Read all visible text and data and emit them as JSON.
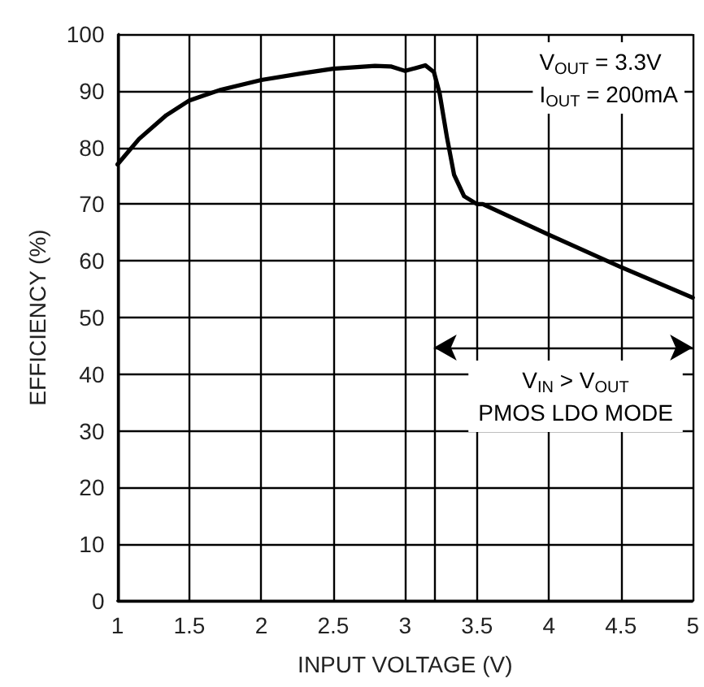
{
  "chart_data": {
    "type": "line",
    "xlabel": "INPUT VOLTAGE (V)",
    "ylabel": "EFFICIENCY (%)",
    "x": [
      1.0,
      1.15,
      1.34,
      1.5,
      1.72,
      2.0,
      2.29,
      2.5,
      2.79,
      2.9,
      3.0,
      3.07,
      3.14,
      3.2,
      3.24,
      3.29,
      3.34,
      3.41,
      3.5,
      3.54,
      4.0,
      4.5,
      5.0
    ],
    "series": [
      {
        "color": "#000000",
        "values": [
          77.0,
          81.5,
          85.7,
          88.3,
          90.2,
          91.9,
          93.1,
          93.9,
          94.4,
          94.3,
          93.5,
          94.0,
          94.5,
          93.3,
          89.5,
          81.9,
          75.2,
          71.4,
          70.0,
          70.0,
          64.6,
          58.9,
          53.5
        ]
      }
    ],
    "xlim": [
      1,
      5
    ],
    "xticks": [
      1,
      1.5,
      2,
      2.5,
      3,
      3.5,
      4,
      4.5,
      5
    ],
    "ylim": [
      0,
      100
    ],
    "yticks": [
      0,
      10,
      20,
      30,
      40,
      50,
      60,
      70,
      80,
      90,
      100
    ],
    "grid": true,
    "marker": "none",
    "line_style": "solid",
    "ref_lines": [
      {
        "axis": "x",
        "value": 3.2,
        "label": null,
        "color": "#000000"
      }
    ],
    "annotations": [
      "V$_{OUT}$ = 3.3V\nI$_{OUT}$ = 200mA",
      "V$_{IN}$ > V$_{OUT}$\nPMOS LDO MODE"
    ]
  }
}
